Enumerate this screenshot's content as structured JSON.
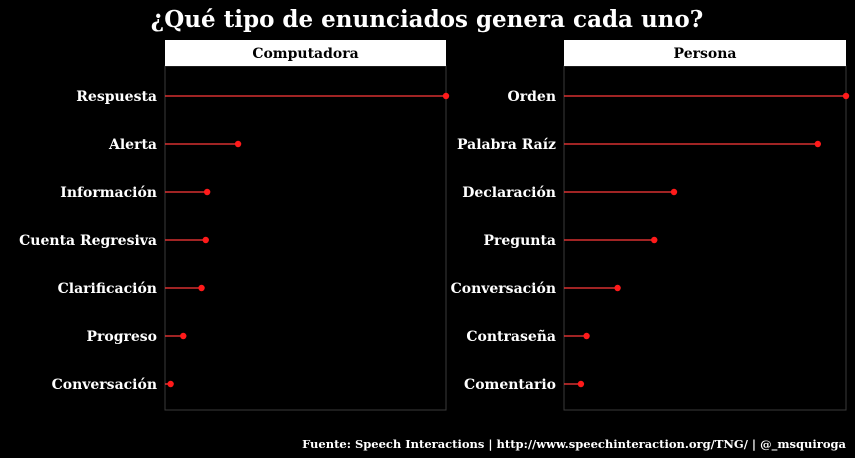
{
  "colors": {
    "background": "#000000",
    "text": "#ffffff",
    "strip_fill": "#ffffff",
    "strip_text": "#000000",
    "panel_border": "#3a3a3a",
    "segment": "#ff3b3b",
    "point": "#ff1a1a"
  },
  "chart_data": {
    "type": "lollipop",
    "title": "¿Qué tipo de enunciados genera cada uno?",
    "caption": "Fuente: Speech Interactions | http://www.speechinteraction.org/TNG/ | @_msquiroga",
    "xlim": [
      0,
      100
    ],
    "grid": false,
    "legend": "none",
    "panels": [
      {
        "name": "Computadora",
        "categories": [
          "Respuesta",
          "Alerta",
          "Información",
          "Cuenta Regresiva",
          "Clarificación",
          "Progreso",
          "Conversación"
        ],
        "values": [
          100,
          26,
          15,
          14.5,
          13,
          6.5,
          2
        ]
      },
      {
        "name": "Persona",
        "categories": [
          "Orden",
          "Palabra Raíz",
          "Declaración",
          "Pregunta",
          "Conversación",
          "Contraseña",
          "Comentario"
        ],
        "values": [
          100,
          90,
          39,
          32,
          19,
          8,
          6
        ]
      }
    ]
  }
}
